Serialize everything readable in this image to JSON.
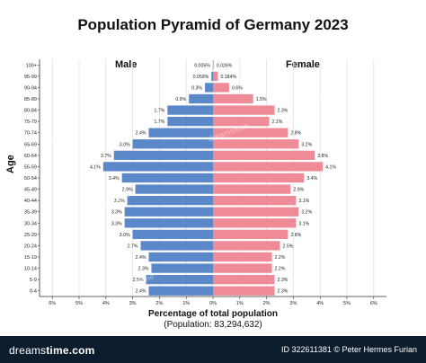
{
  "chart_data": {
    "type": "bar",
    "title": "Population Pyramid of Germany 2023",
    "subtitle": "(Population: 83,294,632)",
    "xlabel": "Percentage of total population",
    "ylabel": "Age",
    "left_label": "Male",
    "right_label": "Female",
    "xlim": [
      -6,
      6
    ],
    "x_ticks": [
      "6%",
      "5%",
      "4%",
      "3%",
      "2%",
      "1%",
      "0%",
      "1%",
      "2%",
      "3%",
      "4%",
      "5%",
      "6%"
    ],
    "grid": true,
    "categories": [
      "100+",
      "95-99",
      "90-94",
      "85-89",
      "80-84",
      "75-79",
      "70-74",
      "65-69",
      "60-64",
      "55-59",
      "50-54",
      "45-49",
      "40-44",
      "35-39",
      "30-34",
      "25-29",
      "20-24",
      "15-19",
      "10-14",
      "5-9",
      "0-4"
    ],
    "series": [
      {
        "name": "Male",
        "color": "#5b88c8",
        "values": [
          0.005,
          0.059,
          0.3,
          0.9,
          1.7,
          1.7,
          2.4,
          3.0,
          3.7,
          4.1,
          3.4,
          2.9,
          3.2,
          3.3,
          3.3,
          3.0,
          2.7,
          2.4,
          2.3,
          2.5,
          2.4
        ],
        "labels": [
          "0.005%",
          "0.059%",
          "0.3%",
          "0.9%",
          "1.7%",
          "1.7%",
          "2.4%",
          "3.0%",
          "3.7%",
          "4.1%",
          "3.4%",
          "2.9%",
          "3.2%",
          "3.3%",
          "3.3%",
          "3.0%",
          "2.7%",
          "2.4%",
          "2.3%",
          "2.5%",
          "2.4%"
        ]
      },
      {
        "name": "Female",
        "color": "#ef8b96",
        "values": [
          0.026,
          0.184,
          0.6,
          1.5,
          2.3,
          2.1,
          2.8,
          3.2,
          3.8,
          4.1,
          3.4,
          2.9,
          3.1,
          3.2,
          3.1,
          2.8,
          2.5,
          2.2,
          2.2,
          2.3,
          2.3
        ],
        "labels": [
          "0.026%",
          "0.184%",
          "0.6%",
          "1.5%",
          "2.3%",
          "2.1%",
          "2.8%",
          "3.2%",
          "3.8%",
          "4.1%",
          "3.4%",
          "2.9%",
          "3.1%",
          "3.2%",
          "3.1%",
          "2.8%",
          "2.5%",
          "2.2%",
          "2.2%",
          "2.3%",
          "2.3%"
        ]
      }
    ]
  },
  "watermark": "dreamstime",
  "footer": {
    "brand_main": "dreams",
    "brand_rest": "time.com",
    "credit": "ID 322611381 © Peter Hermes Furian"
  }
}
